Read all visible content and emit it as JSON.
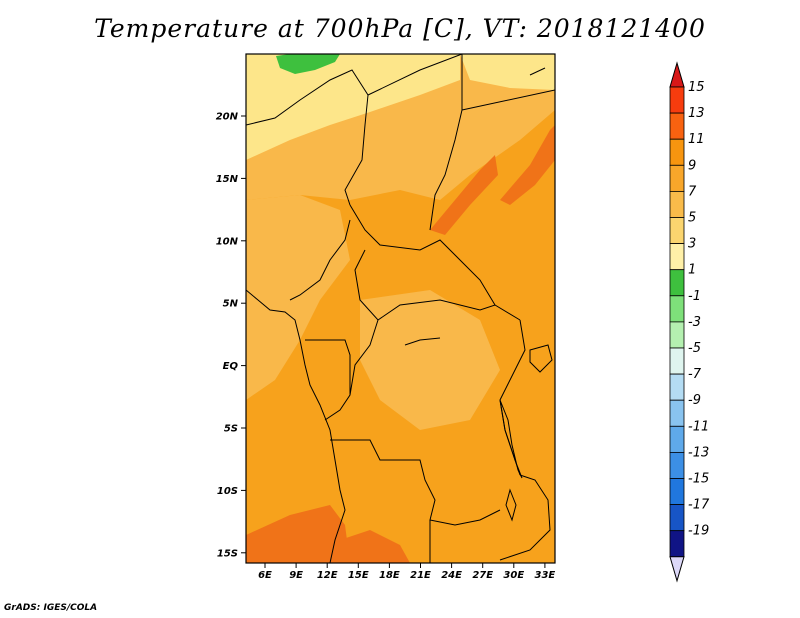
{
  "title": "Temperature at 700hPa [C], VT: 2018121400",
  "credit": "GrADS: IGES/COLA",
  "map": {
    "lat_labels": [
      "20N",
      "15N",
      "10N",
      "5N",
      "EQ",
      "5S",
      "10S",
      "15S"
    ],
    "lon_labels": [
      "6E",
      "9E",
      "12E",
      "15E",
      "18E",
      "21E",
      "24E",
      "27E",
      "30E",
      "33E"
    ],
    "fill_colors": {
      "band_3_5": "#fde68a",
      "band_5_7": "#fbd06b",
      "band_7_9": "#f9b84a",
      "band_9_11": "#f7a21c",
      "band_11_13": "#f07318",
      "band_1_3": "#3ec03e"
    }
  },
  "colorbar": {
    "labels": [
      "15",
      "13",
      "11",
      "9",
      "7",
      "5",
      "3",
      "1",
      "-1",
      "-3",
      "-5",
      "-7",
      "-9",
      "-11",
      "-13",
      "-15",
      "-17",
      "-19"
    ],
    "colors": [
      "#f73c0e",
      "#f86210",
      "#f7950f",
      "#f8a62a",
      "#f9bb4a",
      "#fbd56f",
      "#fff0a8",
      "#3ec03e",
      "#7ee07a",
      "#b4f0b0",
      "#dff5ef",
      "#b4dcf3",
      "#89c3ef",
      "#5fa9ea",
      "#3c8fe5",
      "#2077de",
      "#1755c6",
      "#101485"
    ],
    "top_arrow_color": "#d81818",
    "bottom_arrow_color": "#dcd8f8"
  }
}
